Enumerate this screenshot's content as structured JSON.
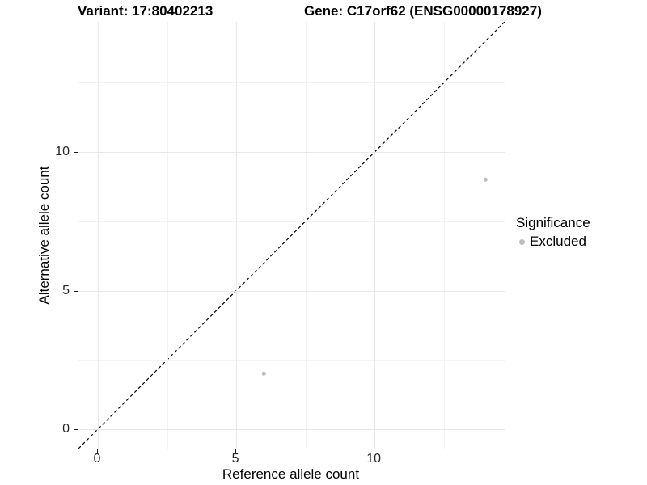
{
  "titles": {
    "variant": "Variant: 17:80402213",
    "gene": "Gene: C17orf62 (ENSG00000178927)"
  },
  "chart_data": {
    "type": "scatter",
    "xlabel": "Reference allele count",
    "ylabel": "Alternative allele count",
    "xlim": [
      -0.7,
      14.7
    ],
    "ylim": [
      -0.7,
      14.7
    ],
    "x_ticks": [
      0,
      5,
      10
    ],
    "y_ticks": [
      0,
      5,
      10
    ],
    "x_minor_ticks": [
      2.5,
      7.5,
      12.5
    ],
    "y_minor_ticks": [
      2.5,
      7.5,
      12.5
    ],
    "grid": true,
    "identity_line": {
      "slope": 1,
      "intercept": 0,
      "style": "dashed",
      "color": "#000000"
    },
    "series": [
      {
        "name": "Excluded",
        "color": "#bebebe",
        "points": [
          {
            "x": 6,
            "y": 2
          },
          {
            "x": 14,
            "y": 9
          }
        ]
      }
    ],
    "legend": {
      "title": "Significance",
      "position": "right",
      "entries": [
        {
          "label": "Excluded",
          "color": "#bebebe"
        }
      ]
    }
  },
  "colors": {
    "background": "#ffffff",
    "axis_line": "#1a1a1a",
    "grid_major": "#e8e8e8",
    "grid_minor": "#f3f3f3",
    "point": "#bebebe",
    "text": "#262626"
  }
}
